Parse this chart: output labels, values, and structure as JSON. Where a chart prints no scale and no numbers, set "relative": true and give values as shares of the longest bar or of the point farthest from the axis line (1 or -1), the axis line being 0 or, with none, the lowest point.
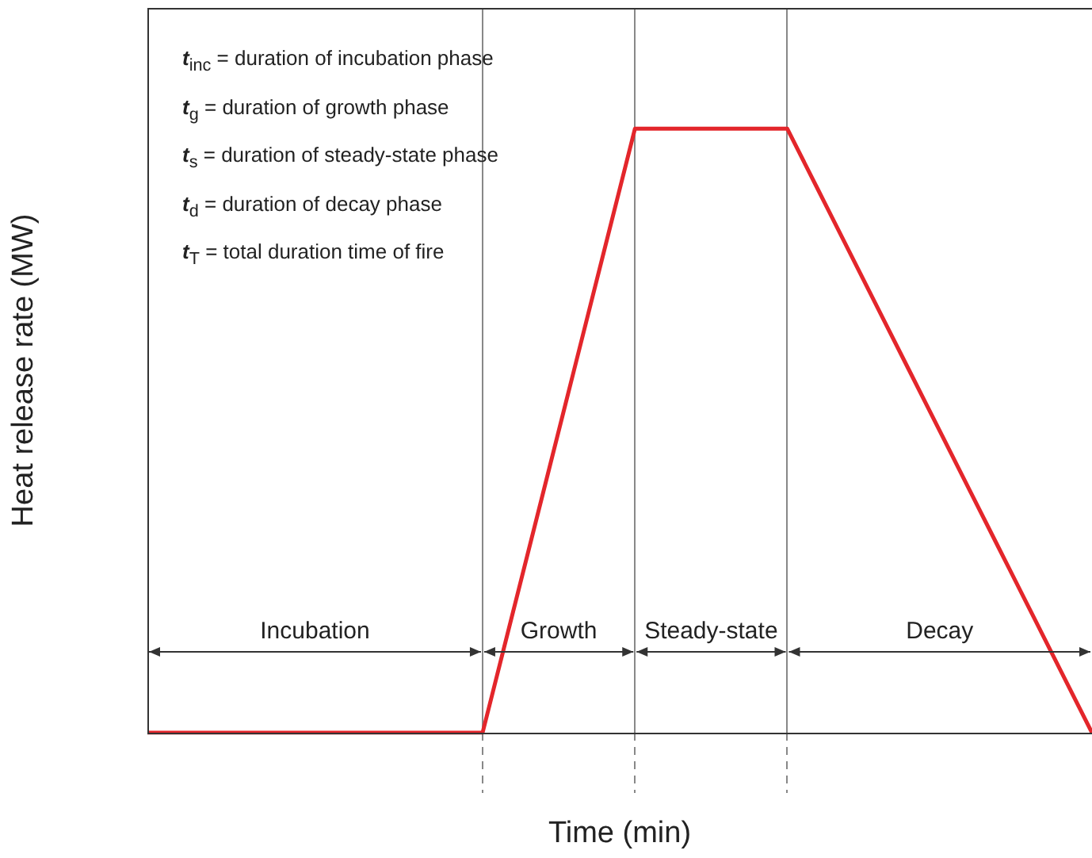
{
  "chart_data": {
    "type": "line",
    "relative": true,
    "xlabel": "Time (min)",
    "ylabel": "Heat release rate (MW)",
    "categories": [
      null,
      null,
      null,
      null,
      null,
      null,
      null,
      null,
      null,
      null,
      null,
      null,
      null,
      null,
      null,
      null,
      null,
      null,
      null,
      null,
      null,
      null,
      null,
      null,
      null,
      null,
      null,
      null,
      null,
      null,
      null,
      null
    ],
    "series": [
      {
        "color": "#e3262b",
        "values": [
          0,
          0,
          0,
          0,
          0,
          0,
          0,
          0,
          0,
          0,
          0,
          0,
          0.2,
          0.4,
          0.6,
          0.8,
          1,
          1,
          1,
          1,
          1,
          1,
          0.9,
          0.8,
          0.7,
          0.6,
          0.5,
          0.4,
          0.3,
          0.2,
          0.1,
          0
        ]
      }
    ],
    "grid": "x",
    "legend": false,
    "marker": "none",
    "line_style": "solid",
    "annotations": [
      "t$_{inc}$ = duration of incubation phase",
      "t$_{g}$ = duration of growth phase",
      "t$_{s}$ = duration of steady-state phase",
      "t$_{d}$ = duration of decay phase",
      "t$_{T}$ = total duration time of fire",
      "Incubation",
      "Growth",
      "Steady-state",
      "Decay"
    ]
  }
}
